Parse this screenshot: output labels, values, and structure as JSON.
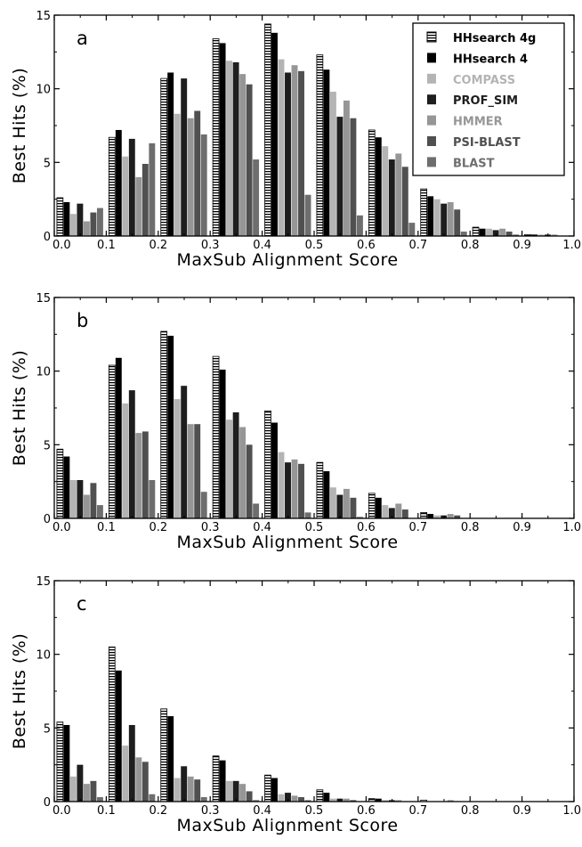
{
  "chart_data": [
    {
      "type": "bar",
      "panel_label": "a",
      "xlabel": "MaxSub Alignment Score",
      "ylabel": "Best Hits (%)",
      "xlim": [
        0,
        1.0
      ],
      "ylim": [
        0,
        15
      ],
      "xticks": [
        "0.0",
        "0.1",
        "0.2",
        "0.3",
        "0.4",
        "0.5",
        "0.6",
        "0.7",
        "0.8",
        "0.9",
        "1.0"
      ],
      "yticks": [
        "0",
        "5",
        "10",
        "15"
      ],
      "bin_starts": [
        0.0,
        0.1,
        0.2,
        0.3,
        0.4,
        0.5,
        0.6,
        0.7,
        0.8,
        0.9
      ],
      "legend": "top-right",
      "series": [
        {
          "name": "HHsearch 4g",
          "values": [
            2.6,
            6.7,
            10.7,
            13.4,
            14.4,
            12.3,
            7.2,
            3.2,
            0.6,
            0.1
          ]
        },
        {
          "name": "HHsearch 4",
          "values": [
            2.3,
            7.2,
            11.1,
            13.1,
            13.8,
            11.3,
            6.7,
            2.7,
            0.5,
            0.1
          ]
        },
        {
          "name": "COMPASS",
          "values": [
            1.5,
            5.4,
            8.3,
            11.9,
            12.0,
            9.8,
            6.1,
            2.5,
            0.5,
            0.1
          ]
        },
        {
          "name": "PROF_SIM",
          "values": [
            2.2,
            6.6,
            10.7,
            11.8,
            11.1,
            8.1,
            5.2,
            2.2,
            0.4,
            0.1
          ]
        },
        {
          "name": "HMMER",
          "values": [
            1.0,
            4.0,
            8.0,
            11.0,
            11.6,
            9.2,
            5.6,
            2.3,
            0.5,
            0.1
          ]
        },
        {
          "name": "PSI-BLAST",
          "values": [
            1.6,
            4.9,
            8.5,
            10.3,
            11.2,
            8.0,
            4.7,
            1.8,
            0.3,
            0.0
          ]
        },
        {
          "name": "BLAST",
          "values": [
            1.9,
            6.3,
            6.9,
            5.2,
            2.8,
            1.4,
            0.9,
            0.3,
            0.1,
            0.0
          ]
        }
      ]
    },
    {
      "type": "bar",
      "panel_label": "b",
      "xlabel": "MaxSub Alignment Score",
      "ylabel": "Best Hits (%)",
      "xlim": [
        0,
        1.0
      ],
      "ylim": [
        0,
        15
      ],
      "xticks": [
        "0.0",
        "0.1",
        "0.2",
        "0.3",
        "0.4",
        "0.5",
        "0.6",
        "0.7",
        "0.8",
        "0.9",
        "1.0"
      ],
      "yticks": [
        "0",
        "5",
        "10",
        "15"
      ],
      "bin_starts": [
        0.0,
        0.1,
        0.2,
        0.3,
        0.4,
        0.5,
        0.6,
        0.7,
        0.8,
        0.9
      ],
      "series": [
        {
          "name": "HHsearch 4g",
          "values": [
            4.7,
            10.4,
            12.7,
            11.0,
            7.3,
            3.8,
            1.7,
            0.4,
            0.0,
            0.0
          ]
        },
        {
          "name": "HHsearch 4",
          "values": [
            4.2,
            10.9,
            12.4,
            10.1,
            6.5,
            3.2,
            1.4,
            0.3,
            0.0,
            0.0
          ]
        },
        {
          "name": "COMPASS",
          "values": [
            2.6,
            7.8,
            8.1,
            6.7,
            4.5,
            2.1,
            0.9,
            0.2,
            0.0,
            0.0
          ]
        },
        {
          "name": "PROF_SIM",
          "values": [
            2.6,
            8.7,
            9.0,
            7.2,
            3.8,
            1.6,
            0.7,
            0.2,
            0.0,
            0.0
          ]
        },
        {
          "name": "HMMER",
          "values": [
            1.6,
            5.8,
            6.4,
            6.2,
            4.0,
            2.0,
            1.0,
            0.3,
            0.0,
            0.0
          ]
        },
        {
          "name": "PSI-BLAST",
          "values": [
            2.4,
            5.9,
            6.4,
            5.0,
            3.7,
            1.4,
            0.6,
            0.2,
            0.0,
            0.0
          ]
        },
        {
          "name": "BLAST",
          "values": [
            0.9,
            2.6,
            1.8,
            1.0,
            0.4,
            0.1,
            0.0,
            0.0,
            0.0,
            0.0
          ]
        }
      ]
    },
    {
      "type": "bar",
      "panel_label": "c",
      "xlabel": "MaxSub Alignment Score",
      "ylabel": "Best Hits (%)",
      "xlim": [
        0,
        1.0
      ],
      "ylim": [
        0,
        15
      ],
      "xticks": [
        "0.0",
        "0.1",
        "0.2",
        "0.3",
        "0.4",
        "0.5",
        "0.6",
        "0.7",
        "0.8",
        "0.9",
        "1.0"
      ],
      "yticks": [
        "0",
        "5",
        "10",
        "15"
      ],
      "bin_starts": [
        0.0,
        0.1,
        0.2,
        0.3,
        0.4,
        0.5,
        0.6,
        0.7,
        0.8,
        0.9
      ],
      "series": [
        {
          "name": "HHsearch 4g",
          "values": [
            5.4,
            10.5,
            6.3,
            3.1,
            1.8,
            0.8,
            0.2,
            0.1,
            0.0,
            0.0
          ]
        },
        {
          "name": "HHsearch 4",
          "values": [
            5.2,
            8.9,
            5.8,
            2.8,
            1.6,
            0.6,
            0.2,
            0.0,
            0.0,
            0.0
          ]
        },
        {
          "name": "COMPASS",
          "values": [
            1.7,
            3.8,
            1.6,
            1.4,
            0.5,
            0.2,
            0.1,
            0.0,
            0.0,
            0.0
          ]
        },
        {
          "name": "PROF_SIM",
          "values": [
            2.5,
            5.2,
            2.4,
            1.4,
            0.6,
            0.2,
            0.1,
            0.0,
            0.0,
            0.0
          ]
        },
        {
          "name": "HMMER",
          "values": [
            1.2,
            3.0,
            1.7,
            1.2,
            0.4,
            0.2,
            0.1,
            0.1,
            0.0,
            0.0
          ]
        },
        {
          "name": "PSI-BLAST",
          "values": [
            1.4,
            2.7,
            1.5,
            0.7,
            0.3,
            0.1,
            0.0,
            0.0,
            0.0,
            0.0
          ]
        },
        {
          "name": "BLAST",
          "values": [
            0.3,
            0.5,
            0.3,
            0.1,
            0.1,
            0.0,
            0.0,
            0.0,
            0.0,
            0.0
          ]
        }
      ]
    }
  ],
  "series_styles": [
    {
      "color": "#ffffff",
      "pattern": "stripes"
    },
    {
      "color": "#000000",
      "pattern": "solid"
    },
    {
      "color": "#b4b4b4",
      "pattern": "solid"
    },
    {
      "color": "#1e1e1e",
      "pattern": "solid"
    },
    {
      "color": "#969696",
      "pattern": "solid"
    },
    {
      "color": "#505050",
      "pattern": "solid"
    },
    {
      "color": "#6e6e6e",
      "pattern": "solid"
    }
  ]
}
